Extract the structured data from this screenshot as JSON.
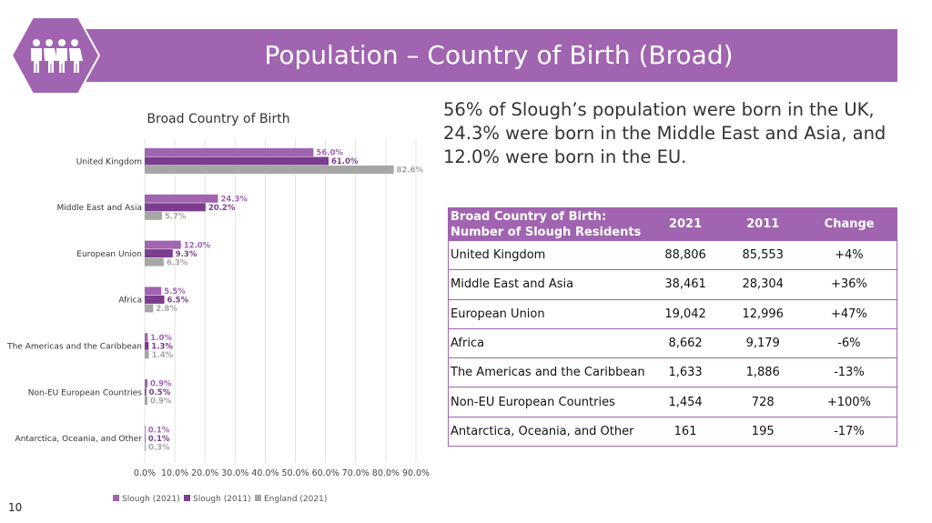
{
  "header": {
    "title": "Population – Country of Birth (Broad)",
    "icon": "people-group-icon",
    "accent": "#a064b0"
  },
  "headline": "56% of Slough’s population were born in the UK, 24.3% were born in the Middle East and Asia, and 12.0% were born in the EU.",
  "chart_data": {
    "type": "bar",
    "orientation": "horizontal",
    "title": "Broad Country of Birth",
    "categories": [
      "United Kingdom",
      "Middle East and Asia",
      "European Union",
      "Africa",
      "The Americas and the Caribbean",
      "Non-EU European Countries",
      "Antarctica, Oceania, and Other"
    ],
    "series": [
      {
        "name": "Slough (2021)",
        "color": "#a064b0",
        "values": [
          56.0,
          24.3,
          12.0,
          5.5,
          1.0,
          0.9,
          0.1
        ],
        "labels": [
          "56.0%",
          "24.3%",
          "12.0%",
          "5.5%",
          "1.0%",
          "0.9%",
          "0.1%"
        ]
      },
      {
        "name": "Slough (2011)",
        "color": "#7b3d8e",
        "values": [
          61.0,
          20.2,
          9.3,
          6.5,
          1.3,
          0.5,
          0.1
        ],
        "labels": [
          "61.0%",
          "20.2%",
          "9.3%",
          "6.5%",
          "1.3%",
          "0.5%",
          "0.1%"
        ]
      },
      {
        "name": "England (2021)",
        "color": "#a6a6a6",
        "values": [
          82.6,
          5.7,
          6.3,
          2.8,
          1.4,
          0.9,
          0.3
        ],
        "labels": [
          "82.6%",
          "5.7%",
          "6.3%",
          "2.8%",
          "1.4%",
          "0.9%",
          "0.3%"
        ]
      }
    ],
    "xlim": [
      0,
      90
    ],
    "xticks": [
      "0.0%",
      "10.0%",
      "20.0%",
      "30.0%",
      "40.0%",
      "50.0%",
      "60.0%",
      "70.0%",
      "80.0%",
      "90.0%"
    ],
    "grid": true,
    "legend": "bottom"
  },
  "table": {
    "headers": [
      "Broad Country of Birth: Number of Slough Residents",
      "2021",
      "2011",
      "Change"
    ],
    "rows": [
      [
        "United Kingdom",
        "88,806",
        "85,553",
        "+4%"
      ],
      [
        "Middle East and Asia",
        "38,461",
        "28,304",
        "+36%"
      ],
      [
        "European Union",
        "19,042",
        "12,996",
        "+47%"
      ],
      [
        "Africa",
        "8,662",
        "9,179",
        "-6%"
      ],
      [
        "The Americas and the Caribbean",
        "1,633",
        "1,886",
        "-13%"
      ],
      [
        "Non-EU European Countries",
        "1,454",
        "728",
        "+100%"
      ],
      [
        "Antarctica, Oceania, and Other",
        "161",
        "195",
        "-17%"
      ]
    ]
  },
  "page_number": "10"
}
